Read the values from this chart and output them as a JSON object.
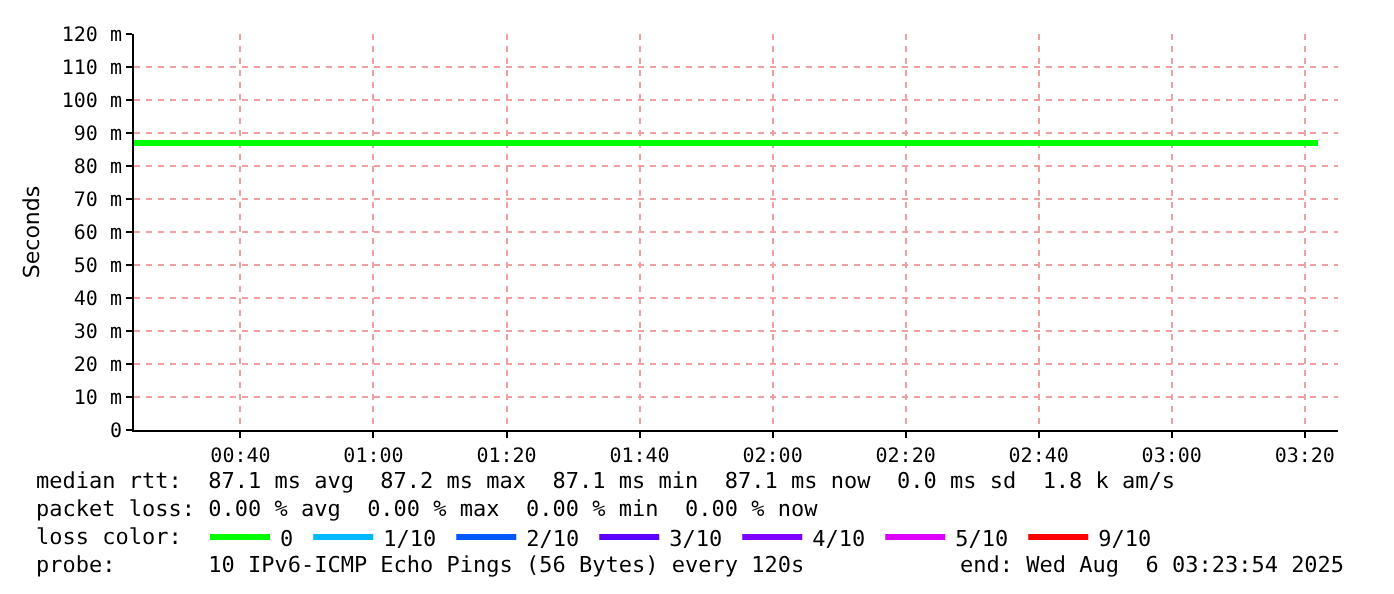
{
  "chart_data": {
    "type": "line",
    "ylabel": "Seconds",
    "x": [
      "2025-08-06T00:24",
      "2025-08-06T01:00",
      "2025-08-06T02:00",
      "2025-08-06T03:00",
      "2025-08-06T03:22"
    ],
    "series": [
      {
        "name": "0",
        "color": "#00ff00",
        "values": [
          87,
          87,
          87,
          87,
          87
        ]
      },
      {
        "name": "1/10",
        "color": "#00b8ff",
        "values": [
          null,
          null,
          null,
          null,
          null
        ]
      },
      {
        "name": "2/10",
        "color": "#0059ff",
        "values": [
          null,
          null,
          null,
          null,
          null
        ]
      },
      {
        "name": "3/10",
        "color": "#5e00ff",
        "values": [
          null,
          null,
          null,
          null,
          null
        ]
      },
      {
        "name": "4/10",
        "color": "#7e00ff",
        "values": [
          null,
          null,
          null,
          null,
          null
        ]
      },
      {
        "name": "5/10",
        "color": "#dd00ff",
        "values": [
          null,
          null,
          null,
          null,
          null
        ]
      },
      {
        "name": "9/10",
        "color": "#ff0000",
        "values": [
          null,
          null,
          null,
          null,
          null
        ]
      }
    ],
    "xlim": [
      "2025-08-06T00:24",
      "2025-08-06T03:25"
    ],
    "xticks": [
      {
        "value": "2025-08-06T00:40",
        "label": "00:40"
      },
      {
        "value": "2025-08-06T01:00",
        "label": "01:00"
      },
      {
        "value": "2025-08-06T01:20",
        "label": "01:20"
      },
      {
        "value": "2025-08-06T01:40",
        "label": "01:40"
      },
      {
        "value": "2025-08-06T02:00",
        "label": "02:00"
      },
      {
        "value": "2025-08-06T02:20",
        "label": "02:20"
      },
      {
        "value": "2025-08-06T02:40",
        "label": "02:40"
      },
      {
        "value": "2025-08-06T03:00",
        "label": "03:00"
      },
      {
        "value": "2025-08-06T03:20",
        "label": "03:20"
      }
    ],
    "ylim": [
      0,
      120
    ],
    "yticks": [
      0,
      {
        "value": 10,
        "label": "10 m"
      },
      {
        "value": 20,
        "label": "20 m"
      },
      {
        "value": 30,
        "label": "30 m"
      },
      {
        "value": 40,
        "label": "40 m"
      },
      {
        "value": 50,
        "label": "50 m"
      },
      {
        "value": 60,
        "label": "60 m"
      },
      {
        "value": 70,
        "label": "70 m"
      },
      {
        "value": 80,
        "label": "80 m"
      },
      {
        "value": 90,
        "label": "90 m"
      },
      {
        "value": 100,
        "label": "100 m"
      },
      {
        "value": 110,
        "label": "110 m"
      },
      {
        "value": 120,
        "label": "120 m"
      }
    ],
    "grid": true,
    "legend": "bottom",
    "marker": "none",
    "line_style": "solid",
    "annotations": [
      "median rtt:  87.1 ms avg  87.2 ms max  87.1 ms min  87.1 ms now  0.0 ms sd  1.8 k am/s",
      "packet loss: 0.00 % avg  0.00 % max  0.00 % min  0.00 % now",
      "loss color:",
      "probe:       10 IPv6-ICMP Echo Pings (56 Bytes) every 120s",
      "end: Wed Aug  6 03:23:54 2025"
    ]
  }
}
